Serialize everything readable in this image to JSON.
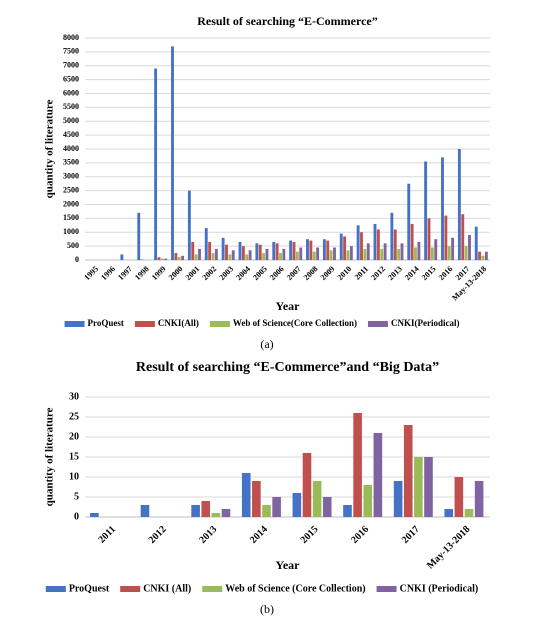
{
  "chart_data": [
    {
      "type": "bar",
      "title": "Result of searching “E-Commerce”",
      "x_label": "Year",
      "y_label": "quantity of literature",
      "caption": "(a)",
      "categories": [
        "1995",
        "1996",
        "1997",
        "1998",
        "1999",
        "2000",
        "2001",
        "2002",
        "2003",
        "2004",
        "2005",
        "2006",
        "2007",
        "2008",
        "2009",
        "2010",
        "2011",
        "2012",
        "2013",
        "2014",
        "2015",
        "2016",
        "2017",
        "May-13-2018"
      ],
      "series": [
        {
          "name": "ProQuest",
          "color": "#4472c4",
          "values": [
            0,
            0,
            200,
            1700,
            6900,
            7700,
            2500,
            1150,
            800,
            650,
            600,
            650,
            700,
            750,
            750,
            950,
            1250,
            1300,
            1700,
            2750,
            3550,
            3700,
            4000,
            1200
          ]
        },
        {
          "name": "CNKI(All)",
          "color": "#c0504d",
          "values": [
            0,
            0,
            0,
            20,
            100,
            250,
            650,
            650,
            550,
            500,
            550,
            600,
            650,
            700,
            700,
            850,
            1000,
            1100,
            1100,
            1300,
            1500,
            1600,
            1650,
            300
          ]
        },
        {
          "name": "Web of Science(Core Collection)",
          "color": "#9bbb59",
          "values": [
            0,
            0,
            0,
            0,
            50,
            100,
            200,
            250,
            200,
            200,
            250,
            250,
            300,
            300,
            350,
            350,
            400,
            400,
            400,
            450,
            450,
            500,
            500,
            150
          ]
        },
        {
          "name": "CNKI(Periodical)",
          "color": "#8064a2",
          "values": [
            0,
            0,
            0,
            0,
            50,
            150,
            400,
            400,
            350,
            350,
            400,
            400,
            450,
            450,
            450,
            500,
            600,
            600,
            600,
            650,
            750,
            800,
            900,
            300
          ]
        }
      ],
      "ylim": [
        0,
        8000
      ],
      "yticks": [
        0,
        500,
        1000,
        1500,
        2000,
        2500,
        3000,
        3500,
        4000,
        4500,
        5000,
        5500,
        6000,
        6500,
        7000,
        7500,
        8000
      ],
      "grid": true
    },
    {
      "type": "bar",
      "title": "Result of searching “E-Commerce”and “Big Data”",
      "x_label": "Year",
      "y_label": "quantity of literature",
      "caption": "(b)",
      "categories": [
        "2011",
        "2012",
        "2013",
        "2014",
        "2015",
        "2016",
        "2017",
        "May-13-2018"
      ],
      "series": [
        {
          "name": "ProQuest",
          "color": "#4472c4",
          "values": [
            1,
            3,
            3,
            11,
            6,
            3,
            9,
            2
          ]
        },
        {
          "name": "CNKI (All)",
          "color": "#c0504d",
          "values": [
            null,
            null,
            4,
            9,
            16,
            26,
            23,
            10
          ]
        },
        {
          "name": "Web of Science (Core Collection)",
          "color": "#9bbb59",
          "values": [
            null,
            null,
            1,
            3,
            9,
            8,
            15,
            2
          ]
        },
        {
          "name": "CNKI (Periodical)",
          "color": "#8064a2",
          "values": [
            null,
            null,
            2,
            5,
            5,
            21,
            15,
            9
          ]
        }
      ],
      "ylim": [
        0,
        30
      ],
      "yticks": [
        0,
        5,
        10,
        15,
        20,
        25,
        30
      ],
      "grid": true
    }
  ]
}
